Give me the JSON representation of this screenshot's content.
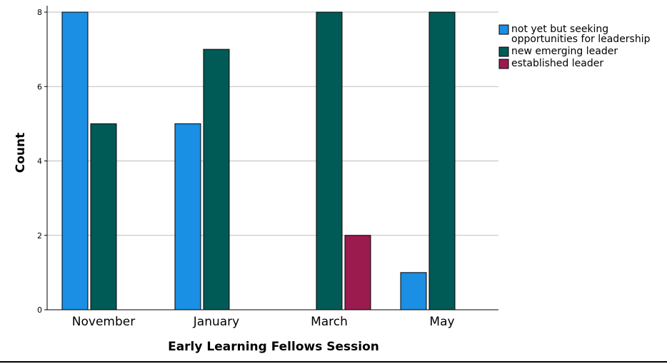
{
  "chart_data": {
    "type": "bar",
    "categories": [
      "November",
      "January",
      "March",
      "May"
    ],
    "series": [
      {
        "name": "not yet but seeking opportunities for leadership",
        "color": "#1a8fe3",
        "values": [
          8,
          5,
          0,
          1
        ]
      },
      {
        "name": "new emerging leader",
        "color": "#005a56",
        "values": [
          5,
          7,
          8,
          8
        ]
      },
      {
        "name": "established leader",
        "color": "#9b1b4f",
        "values": [
          0,
          0,
          2,
          0
        ]
      }
    ],
    "xlabel": "Early Learning Fellows Session",
    "ylabel": "Count",
    "ylim": [
      0,
      8
    ],
    "yticks": [
      0,
      2,
      4,
      6,
      8
    ],
    "grid": true,
    "legend_position": "top-right"
  }
}
